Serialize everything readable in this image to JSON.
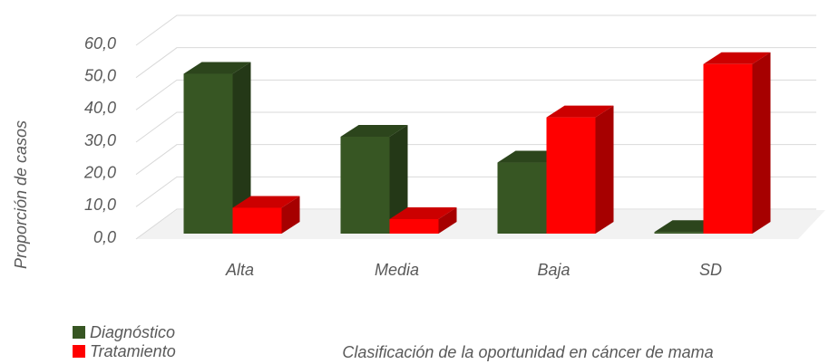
{
  "chart_data": {
    "type": "bar",
    "categories": [
      "Alta",
      "Media",
      "Baja",
      "SD"
    ],
    "series": [
      {
        "name": "Diagnóstico",
        "color": "#375623",
        "values": [
          49.5,
          30,
          22,
          0.5
        ]
      },
      {
        "name": "Tratamiento",
        "color": "#ff0000",
        "values": [
          8,
          4.5,
          36,
          52.5
        ]
      }
    ],
    "ylim": [
      0,
      60
    ],
    "yticks": [
      {
        "value": 0,
        "label": "0,0"
      },
      {
        "value": 10,
        "label": "10,0"
      },
      {
        "value": 20,
        "label": "20,0"
      },
      {
        "value": 30,
        "label": "30,0"
      },
      {
        "value": 40,
        "label": "40,0"
      },
      {
        "value": 50,
        "label": "50,0"
      },
      {
        "value": 60,
        "label": "60,0"
      }
    ],
    "y_label": "Proporción de casos",
    "x_label": "Clasificación de la oportunidad en cáncer de mama",
    "grid": true,
    "legend": "bottom-left"
  }
}
